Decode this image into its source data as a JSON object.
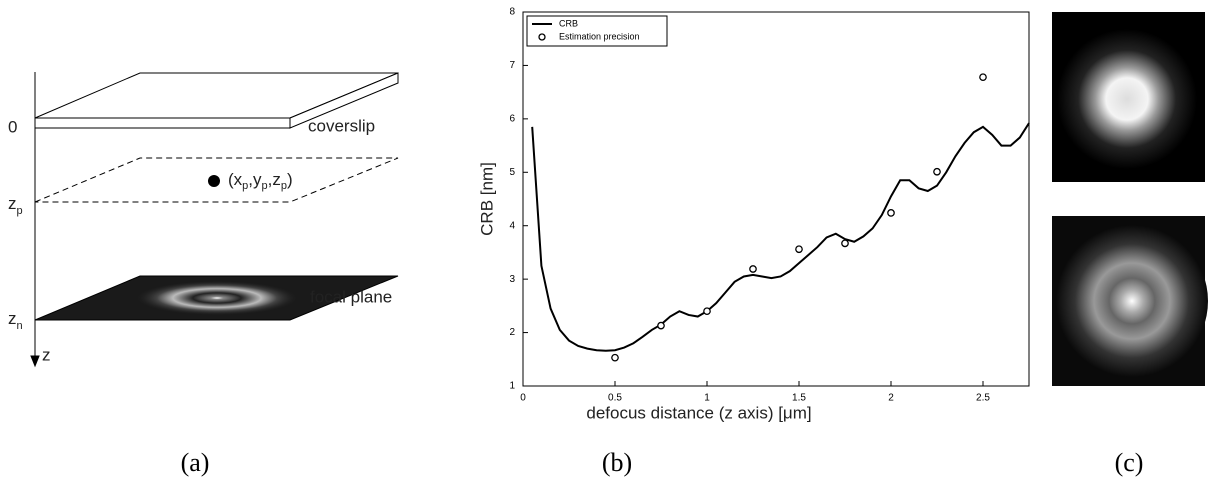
{
  "panel_a": {
    "surface_label": "coverslip",
    "focal_label": "focal plane",
    "origin_label": "0",
    "z_p": [
      "z",
      "p"
    ],
    "z_n": [
      "z",
      "n"
    ],
    "axis_label": "z",
    "point_label": [
      "(x",
      "p",
      ",y",
      "p",
      ",z",
      "p",
      ")"
    ]
  },
  "chart_data": {
    "type": "line",
    "x_label": "defocus distance (z axis) [μm]",
    "y_label": "CRB [nm]",
    "xlim": [
      0,
      2.75
    ],
    "ylim": [
      1,
      8
    ],
    "xticks": [
      0,
      0.5,
      1,
      1.5,
      2,
      2.5
    ],
    "yticks": [
      1,
      2,
      3,
      4,
      5,
      6,
      7,
      8
    ],
    "legend": "upper left",
    "series": [
      {
        "name": "CRB",
        "type": "line",
        "color": "#000000",
        "x": [
          0.05,
          0.1,
          0.15,
          0.2,
          0.25,
          0.3,
          0.35,
          0.4,
          0.45,
          0.5,
          0.55,
          0.6,
          0.65,
          0.7,
          0.75,
          0.8,
          0.85,
          0.9,
          0.95,
          1.0,
          1.05,
          1.1,
          1.15,
          1.2,
          1.25,
          1.3,
          1.35,
          1.4,
          1.45,
          1.5,
          1.55,
          1.6,
          1.65,
          1.7,
          1.75,
          1.8,
          1.85,
          1.9,
          1.95,
          2.0,
          2.05,
          2.1,
          2.15,
          2.2,
          2.25,
          2.3,
          2.35,
          2.4,
          2.45,
          2.5,
          2.55,
          2.6,
          2.65,
          2.7,
          2.75
        ],
        "values": [
          5.85,
          3.25,
          2.45,
          2.05,
          1.85,
          1.75,
          1.7,
          1.67,
          1.66,
          1.67,
          1.72,
          1.8,
          1.92,
          2.05,
          2.15,
          2.3,
          2.4,
          2.33,
          2.3,
          2.4,
          2.55,
          2.75,
          2.95,
          3.05,
          3.08,
          3.05,
          3.02,
          3.05,
          3.15,
          3.3,
          3.45,
          3.6,
          3.78,
          3.85,
          3.75,
          3.7,
          3.8,
          3.95,
          4.2,
          4.55,
          4.85,
          4.85,
          4.7,
          4.65,
          4.75,
          5.0,
          5.3,
          5.55,
          5.75,
          5.85,
          5.7,
          5.5,
          5.5,
          5.65,
          5.92
        ]
      },
      {
        "name": "Estimation precision",
        "type": "scatter",
        "color": "#000000",
        "x": [
          0.5,
          0.75,
          1,
          1.25,
          1.5,
          1.75,
          2,
          2.25,
          2.5
        ],
        "values": [
          1.53,
          2.13,
          2.4,
          3.19,
          3.56,
          3.67,
          4.24,
          5.01,
          6.78
        ]
      }
    ]
  },
  "panel_labels": [
    "(a)",
    "(b)",
    "(c)"
  ]
}
